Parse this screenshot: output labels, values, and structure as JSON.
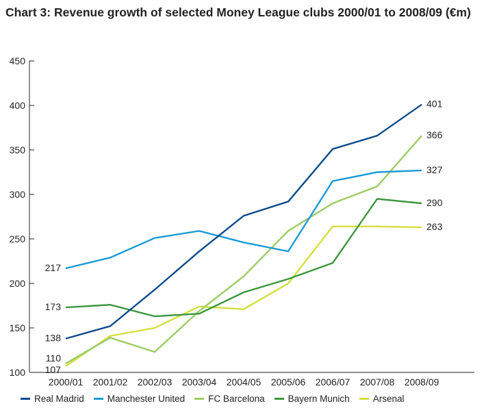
{
  "chart_data": {
    "type": "line",
    "title": "Chart 3: Revenue growth of selected Money League clubs 2000/01 to 2008/09 (€m)",
    "xlabel": "",
    "ylabel": "",
    "categories": [
      "2000/01",
      "2001/02",
      "2002/03",
      "2003/04",
      "2004/05",
      "2005/06",
      "2006/07",
      "2007/08",
      "2008/09"
    ],
    "ylim": [
      100,
      450
    ],
    "yticks": [
      100,
      150,
      200,
      250,
      300,
      350,
      400,
      450
    ],
    "grid": false,
    "legend_position": "bottom",
    "series": [
      {
        "name": "Real Madrid",
        "color": "#0d4a8a",
        "values": [
          138,
          152,
          193,
          236,
          276,
          292,
          351,
          366,
          401
        ],
        "start_label": "138",
        "end_label": "401"
      },
      {
        "name": "Manchester United",
        "color": "#1a9ad6",
        "values": [
          217,
          229,
          251,
          259,
          246,
          236,
          315,
          325,
          327
        ],
        "start_label": "217",
        "end_label": "327"
      },
      {
        "name": "FC Barcelona",
        "color": "#9ccc65",
        "values": [
          110,
          139,
          123,
          169,
          208,
          259,
          290,
          309,
          366
        ],
        "start_label": "110",
        "end_label": "366"
      },
      {
        "name": "Bayern Munich",
        "color": "#3a963a",
        "values": [
          173,
          176,
          163,
          166,
          190,
          205,
          223,
          295,
          290
        ],
        "start_label": "173",
        "end_label": "290"
      },
      {
        "name": "Arsenal",
        "color": "#d4df3a",
        "values": [
          107,
          141,
          150,
          174,
          171,
          200,
          264,
          264,
          263
        ],
        "start_label": "107",
        "end_label": "263"
      }
    ]
  }
}
